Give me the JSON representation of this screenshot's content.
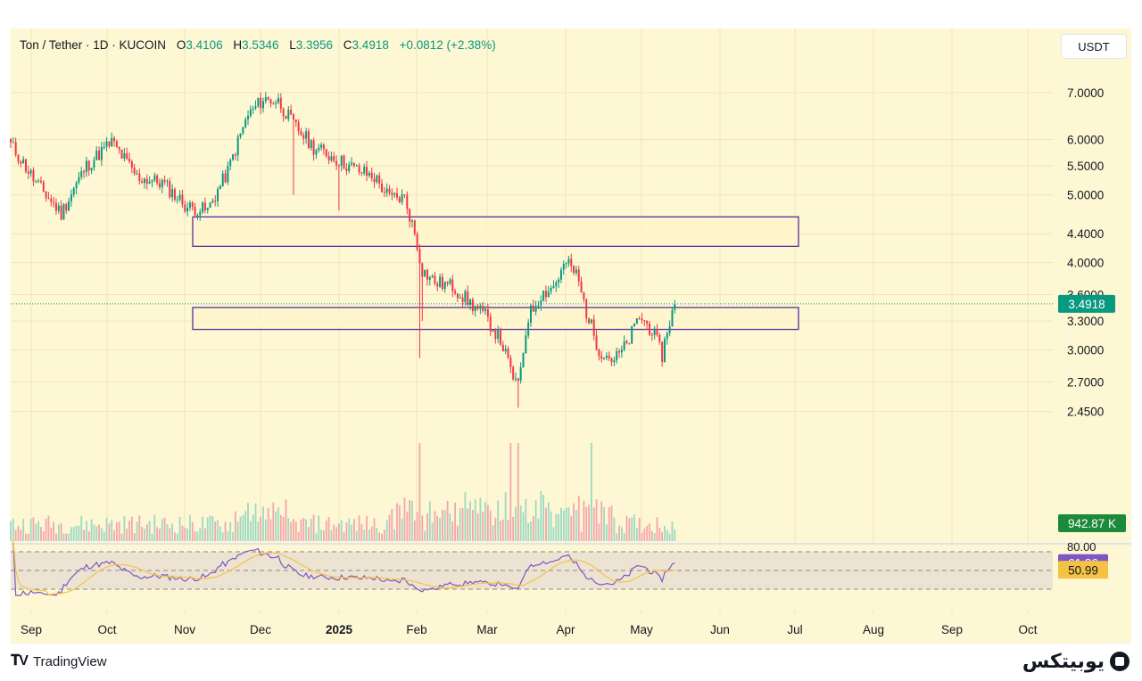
{
  "header": {
    "symbol_line": "Ton / Tether · 1D · KUCOIN",
    "o_label": "O",
    "o_value": "3.4106",
    "h_label": "H",
    "h_value": "3.5346",
    "l_label": "L",
    "l_value": "3.3956",
    "c_label": "C",
    "c_value": "3.4918",
    "change": "+0.0812 (+2.38%)"
  },
  "unit_button": "USDT",
  "colors": {
    "background": "#fdf7d3",
    "up": "#089981",
    "down": "#f23645",
    "zone_border": "#5b2ca0",
    "zone_fill": "#fff6cc",
    "rsi_line": "#7e57c2",
    "rsi_ma": "#f5c343",
    "last_price_badge": "#089981",
    "volume_badge": "#1b8a3a"
  },
  "footer": {
    "brand_left": "TradingView",
    "brand_right": "یوبیتکس"
  },
  "chart_data": {
    "type": "candlestick",
    "scale": "log",
    "price_axis_ticks": [
      "7.0000",
      "6.0000",
      "5.5000",
      "5.0000",
      "4.4000",
      "4.0000",
      "3.6000",
      "3.3000",
      "3.0000",
      "2.7000",
      "2.4500"
    ],
    "last_price": "3.4918",
    "volume_label": "942.87 K",
    "time_axis_ticks": [
      "Sep",
      "Oct",
      "Nov",
      "Dec",
      "2025",
      "Feb",
      "Mar",
      "Apr",
      "May",
      "Jun",
      "Jul",
      "Aug",
      "Sep",
      "Oct"
    ],
    "zones": [
      {
        "top": 4.65,
        "bottom": 4.22
      },
      {
        "top": 3.45,
        "bottom": 3.21
      }
    ],
    "anchors": [
      {
        "x": 0,
        "y": 5.9
      },
      {
        "x": 10,
        "y": 5.2
      },
      {
        "x": 20,
        "y": 4.7
      },
      {
        "x": 30,
        "y": 5.5
      },
      {
        "x": 40,
        "y": 5.95
      },
      {
        "x": 50,
        "y": 5.3
      },
      {
        "x": 60,
        "y": 5.2
      },
      {
        "x": 70,
        "y": 4.8
      },
      {
        "x": 78,
        "y": 4.75
      },
      {
        "x": 86,
        "y": 5.4
      },
      {
        "x": 94,
        "y": 6.5
      },
      {
        "x": 100,
        "y": 6.85
      },
      {
        "x": 106,
        "y": 6.8
      },
      {
        "x": 112,
        "y": 6.3
      },
      {
        "x": 120,
        "y": 5.85
      },
      {
        "x": 128,
        "y": 5.65
      },
      {
        "x": 136,
        "y": 5.45
      },
      {
        "x": 144,
        "y": 5.3
      },
      {
        "x": 150,
        "y": 4.95
      },
      {
        "x": 156,
        "y": 4.95
      },
      {
        "x": 160,
        "y": 4.4
      },
      {
        "x": 163,
        "y": 3.9
      },
      {
        "x": 168,
        "y": 3.75
      },
      {
        "x": 175,
        "y": 3.7
      },
      {
        "x": 182,
        "y": 3.5
      },
      {
        "x": 188,
        "y": 3.35
      },
      {
        "x": 194,
        "y": 3.1
      },
      {
        "x": 198,
        "y": 2.8
      },
      {
        "x": 201,
        "y": 2.65
      },
      {
        "x": 205,
        "y": 3.35
      },
      {
        "x": 210,
        "y": 3.6
      },
      {
        "x": 215,
        "y": 3.7
      },
      {
        "x": 220,
        "y": 4.0
      },
      {
        "x": 224,
        "y": 3.85
      },
      {
        "x": 228,
        "y": 3.4
      },
      {
        "x": 233,
        "y": 3.0
      },
      {
        "x": 239,
        "y": 2.9
      },
      {
        "x": 244,
        "y": 3.05
      },
      {
        "x": 249,
        "y": 3.35
      },
      {
        "x": 254,
        "y": 3.2
      },
      {
        "x": 258,
        "y": 2.95
      },
      {
        "x": 260,
        "y": 3.2
      },
      {
        "x": 263,
        "y": 3.49
      }
    ],
    "rsi": {
      "levels": [
        80,
        50,
        20
      ],
      "axis_label": "80.00",
      "rsi_value": "61.86",
      "ma_value": "50.99"
    }
  }
}
